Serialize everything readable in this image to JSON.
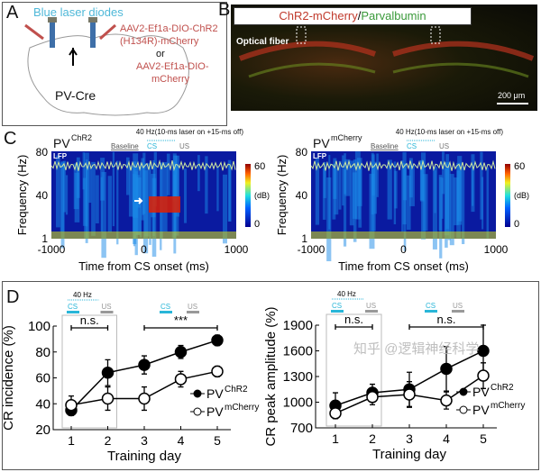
{
  "panels": {
    "a": {
      "label": "A",
      "laser_label": "Blue laser diodes",
      "virus_1": "AAV2-Ef1a-DIO-ChR2",
      "virus_1b": "(H134R)-mCherry",
      "or": "or",
      "virus_2": "AAV2-Ef1a-DIO-",
      "virus_2b": "mCherry",
      "mouse": "PV-Cre"
    },
    "b": {
      "label": "B",
      "title_red": "ChR2-mCherry",
      "slash": "/",
      "title_green": "Parvalbumin",
      "fiber": "Optical fiber",
      "scale": "200 μm"
    },
    "c": {
      "label": "C",
      "stim": "40 Hz(10-ms laser on +15-ms off)",
      "baseline": "Baseline",
      "cs": "CS",
      "us": "US",
      "lfp": "LFP",
      "left_title": "PV",
      "left_sup": "ChR2",
      "right_title": "PV",
      "right_sup": "mCherry",
      "ylabel": "Frequency (Hz)",
      "xlabel": "Time from CS onset (ms)",
      "yticks": [
        "80",
        "40",
        "1"
      ],
      "xticks": [
        "-1000",
        "0",
        "1000"
      ],
      "cbar_ticks": [
        "60",
        "(dB)",
        "0"
      ]
    },
    "d": {
      "label": "D",
      "hz": "40 Hz",
      "cs": "CS",
      "us": "US"
    }
  },
  "colors": {
    "chr2": "#000000",
    "mcherry": "#ffffff",
    "cs": "#29b6d8",
    "us": "#999999",
    "virus": "#c0504d",
    "laser": "#4fb8d8"
  },
  "watermark": "知乎 @逻辑神经科学",
  "chart_data": [
    {
      "type": "line",
      "ylabel": "CR incidence (%)",
      "xlabel": "Training day",
      "x": [
        1,
        2,
        3,
        4,
        5
      ],
      "ylim": [
        20,
        100
      ],
      "yticks": [
        20,
        40,
        60,
        80,
        100
      ],
      "series": [
        {
          "name": "PV ChR2",
          "values": [
            35,
            64,
            70,
            80,
            89
          ],
          "errors": [
            4,
            10,
            7,
            5,
            4
          ],
          "marker": "filled"
        },
        {
          "name": "PV mCherry",
          "values": [
            39,
            44,
            44,
            59,
            65
          ],
          "errors": [
            7,
            9,
            9,
            6,
            4
          ],
          "marker": "open"
        }
      ],
      "legend": [
        "PV",
        "ChR2",
        "PV",
        "mCherry"
      ],
      "annotations": [
        {
          "from": 1,
          "to": 2,
          "text": "n.s."
        },
        {
          "from": 3,
          "to": 5,
          "text": "***"
        }
      ],
      "legend_position": "bottom-right"
    },
    {
      "type": "line",
      "ylabel": "CR peak amplitude (%)",
      "xlabel": "Training day",
      "x": [
        1,
        2,
        3,
        4,
        5
      ],
      "ylim": [
        700,
        1900
      ],
      "yticks": [
        700,
        1000,
        1300,
        1600,
        1900
      ],
      "series": [
        {
          "name": "PV ChR2",
          "values": [
            960,
            1110,
            1150,
            1390,
            1600
          ],
          "errors": [
            150,
            100,
            200,
            260,
            300
          ],
          "marker": "filled"
        },
        {
          "name": "PV mCherry",
          "values": [
            870,
            1060,
            1090,
            1020,
            1310
          ],
          "errors": [
            60,
            90,
            150,
            100,
            150
          ],
          "marker": "open"
        }
      ],
      "legend": [
        "PV",
        "ChR2",
        "PV",
        "mCherry"
      ],
      "annotations": [
        {
          "from": 1,
          "to": 2,
          "text": "n.s."
        },
        {
          "from": 3,
          "to": 5,
          "text": "n.s."
        }
      ],
      "legend_position": "bottom-right"
    }
  ]
}
